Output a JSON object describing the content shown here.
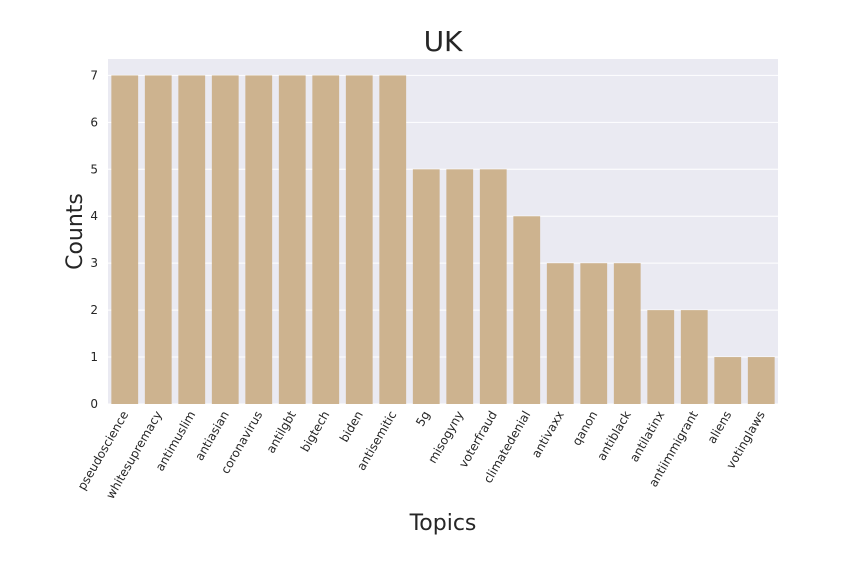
{
  "chart_data": {
    "type": "bar",
    "title": "UK",
    "xlabel": "Topics",
    "ylabel": "Counts",
    "categories": [
      "pseudoscience",
      "whitesupremacy",
      "antimuslim",
      "antiasian",
      "coronavirus",
      "antilgbt",
      "bigtech",
      "biden",
      "antisemitic",
      "5g",
      "misogyny",
      "voterfraud",
      "climatedenial",
      "antivaxx",
      "qanon",
      "antiblack",
      "antilatinx",
      "antiimmigrant",
      "aliens",
      "votinglaws"
    ],
    "values": [
      7,
      7,
      7,
      7,
      7,
      7,
      7,
      7,
      7,
      5,
      5,
      5,
      4,
      3,
      3,
      3,
      2,
      2,
      1,
      1
    ],
    "ylim": [
      0,
      7.35
    ],
    "yticks": [
      0,
      1,
      2,
      3,
      4,
      5,
      6,
      7
    ],
    "grid": true,
    "colors": {
      "bar": "#cdb38f",
      "plot_background": "#eaeaf2",
      "grid": "#ffffff"
    }
  }
}
